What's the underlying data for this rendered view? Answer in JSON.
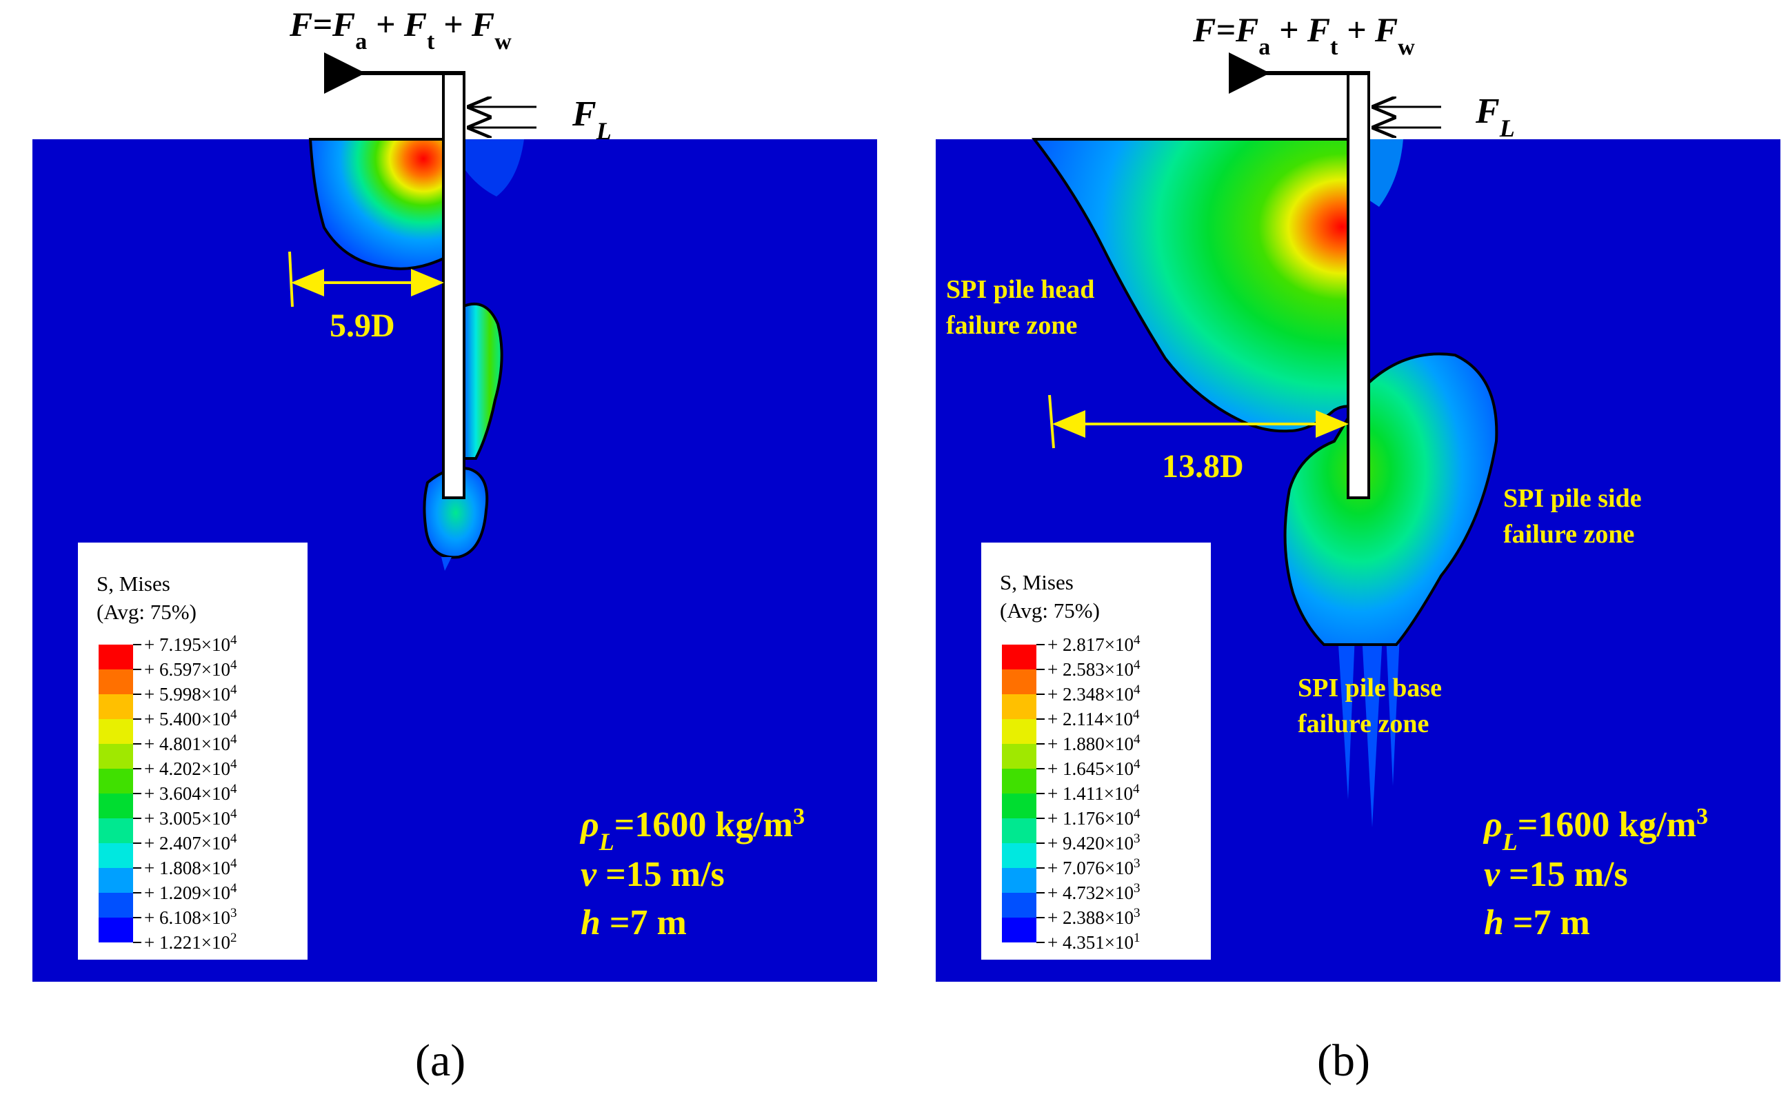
{
  "force_formula": {
    "prefix": "F=F",
    "sub_a": "a",
    "plus_ft": " + F",
    "sub_t": "t",
    "plus_fw": " + F",
    "sub_w": "w"
  },
  "lateral_force": {
    "symbol": "F",
    "subscript": "L"
  },
  "colors": {
    "background_field": "#0000cc",
    "bands": [
      "#0000ff",
      "#0050ff",
      "#00a0ff",
      "#00e8e0",
      "#00e890",
      "#00dd30",
      "#40e000",
      "#a0e800",
      "#e8f000",
      "#ffc000",
      "#ff7000",
      "#ff0000"
    ],
    "annotation": "#ffee00"
  },
  "panels": [
    {
      "id": "a",
      "caption": "(a)",
      "legend": {
        "title": "S, Mises",
        "subtitle": "(Avg: 75%)",
        "ticks": [
          {
            "mant": "+ 7.195×10",
            "exp": "4"
          },
          {
            "mant": "+ 6.597×10",
            "exp": "4"
          },
          {
            "mant": "+ 5.998×10",
            "exp": "4"
          },
          {
            "mant": "+ 5.400×10",
            "exp": "4"
          },
          {
            "mant": "+ 4.801×10",
            "exp": "4"
          },
          {
            "mant": "+ 4.202×10",
            "exp": "4"
          },
          {
            "mant": "+ 3.604×10",
            "exp": "4"
          },
          {
            "mant": "+ 3.005×10",
            "exp": "4"
          },
          {
            "mant": "+ 2.407×10",
            "exp": "4"
          },
          {
            "mant": "+ 1.808×10",
            "exp": "4"
          },
          {
            "mant": "+ 1.209×10",
            "exp": "4"
          },
          {
            "mant": "+ 6.108×10",
            "exp": "3"
          },
          {
            "mant": "+ 1.221×10",
            "exp": "2"
          }
        ]
      },
      "dimension_label": "5.9D",
      "zone_labels": [],
      "params": {
        "rho_sym": "ρ",
        "rho_sub": "L",
        "rho_val": "=1600 kg/m",
        "rho_exp": "3",
        "v_sym": "v",
        "v_val": " =15 m/s",
        "h_sym": "h",
        "h_val": " =7 m"
      }
    },
    {
      "id": "b",
      "caption": "(b)",
      "legend": {
        "title": "S, Mises",
        "subtitle": "(Avg: 75%)",
        "ticks": [
          {
            "mant": "+ 2.817×10",
            "exp": "4"
          },
          {
            "mant": "+ 2.583×10",
            "exp": "4"
          },
          {
            "mant": "+ 2.348×10",
            "exp": "4"
          },
          {
            "mant": "+ 2.114×10",
            "exp": "4"
          },
          {
            "mant": "+ 1.880×10",
            "exp": "4"
          },
          {
            "mant": "+ 1.645×10",
            "exp": "4"
          },
          {
            "mant": "+ 1.411×10",
            "exp": "4"
          },
          {
            "mant": "+ 1.176×10",
            "exp": "4"
          },
          {
            "mant": "+ 9.420×10",
            "exp": "3"
          },
          {
            "mant": "+ 7.076×10",
            "exp": "3"
          },
          {
            "mant": "+ 4.732×10",
            "exp": "3"
          },
          {
            "mant": "+ 2.388×10",
            "exp": "3"
          },
          {
            "mant": "+ 4.351×10",
            "exp": "1"
          }
        ]
      },
      "dimension_label": "13.8D",
      "zone_labels": [
        {
          "line1": "SPI pile head",
          "line2": "failure zone"
        },
        {
          "line1": "SPI pile side",
          "line2": "failure zone"
        },
        {
          "line1": "SPI pile base",
          "line2": "failure zone"
        }
      ],
      "params": {
        "rho_sym": "ρ",
        "rho_sub": "L",
        "rho_val": "=1600 kg/m",
        "rho_exp": "3",
        "v_sym": "v",
        "v_val": " =15 m/s",
        "h_sym": "h",
        "h_val": " =7 m"
      }
    }
  ]
}
